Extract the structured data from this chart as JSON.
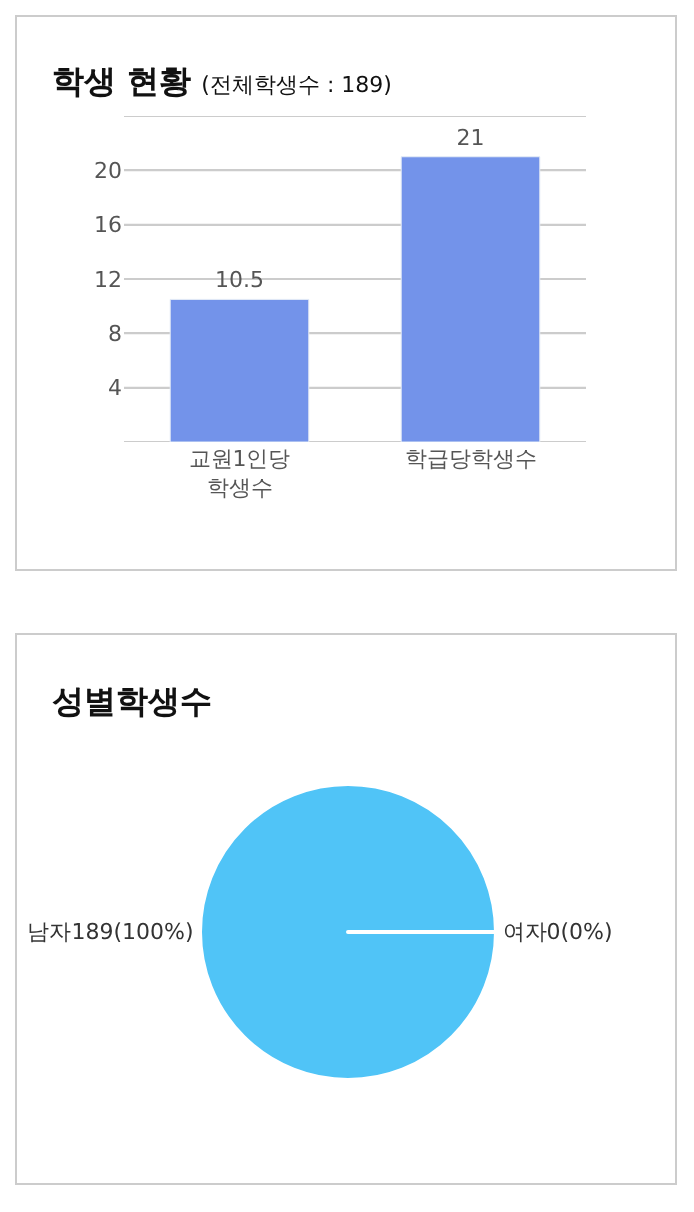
{
  "chart_data": [
    {
      "type": "bar",
      "title": "학생 현황",
      "subtitle": "(전체학생수 : 189)",
      "categories": [
        "교원1인당\n학생수",
        "학급당학생수"
      ],
      "values": [
        10.5,
        21
      ],
      "color": "#7393ea",
      "ylim": [
        0,
        24
      ],
      "yticks": [
        {
          "value": 0,
          "label": null
        },
        4,
        8,
        12,
        16,
        20,
        {
          "value": 24,
          "label": null
        }
      ],
      "grid": "y",
      "data_labels": true
    },
    {
      "type": "pie",
      "title": "성별학생수",
      "categories": [
        "남자",
        "여자"
      ],
      "values": [
        189,
        0
      ],
      "colors": [
        "#50c4f7",
        "#ffffff"
      ],
      "value_labels": [
        "189(100%)",
        "0(0%)"
      ]
    }
  ]
}
